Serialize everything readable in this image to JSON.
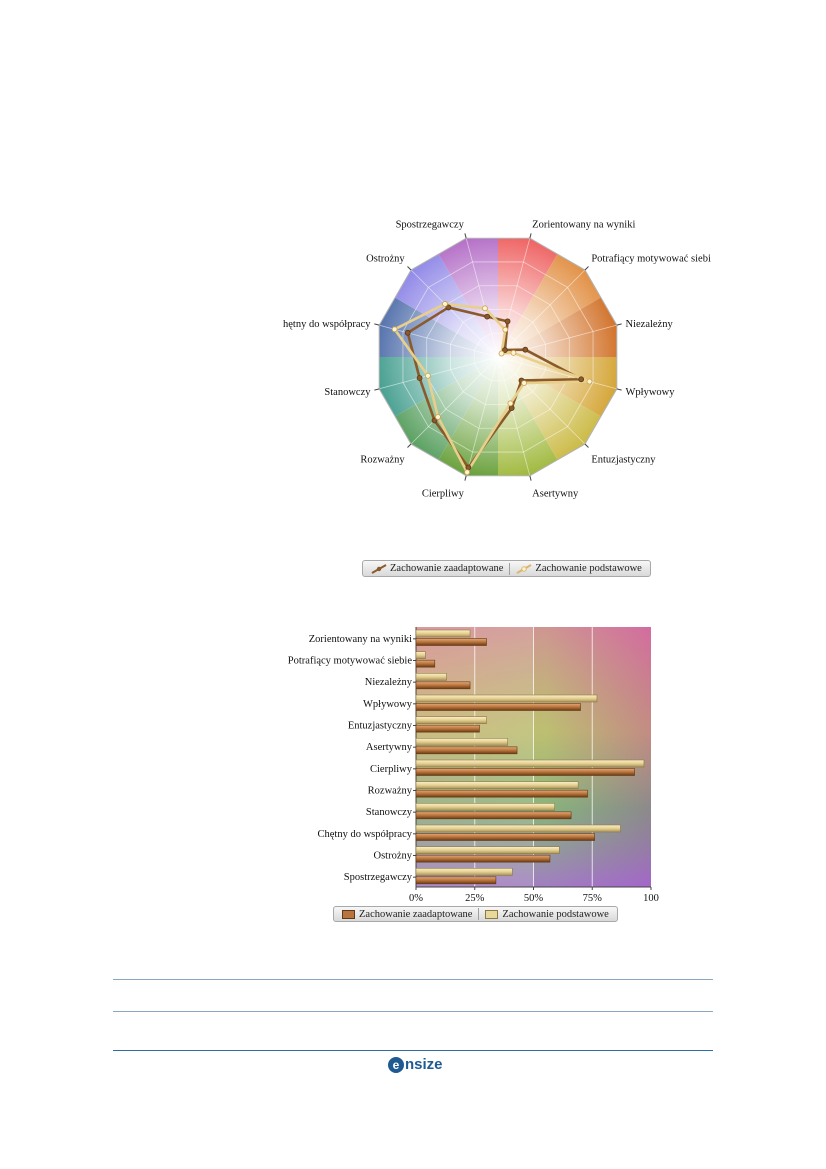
{
  "chart_data": [
    {
      "type": "radar",
      "title": "",
      "categories": [
        "Zorientowany na wyniki",
        "Potrafiący motywować siebie",
        "Niezależny",
        "Wpływowy",
        "Entuzjastyczny",
        "Asertywny",
        "Cierpliwy",
        "Rozważny",
        "Stanowczy",
        "Chętny do współpracy",
        "Ostrożny",
        "Spostrzegawczy"
      ],
      "label_texts": [
        "Zorientowany na wyniki",
        "Potrafiący motywować siebi",
        "Niezależny",
        "Wpływowy",
        "Entuzjastyczny",
        "Asertywny",
        "Cierpliwy",
        "Rozważny",
        "Stanowczy",
        "hętny do współpracy",
        "Ostrożny",
        "Spostrzegawczy"
      ],
      "series": [
        {
          "name": "Zachowanie zaadaptowane",
          "values": [
            30,
            8,
            23,
            70,
            27,
            43,
            93,
            73,
            66,
            76,
            57,
            34
          ],
          "color": "#8a5a2b"
        },
        {
          "name": "Zachowanie podstawowe",
          "values": [
            23,
            4,
            13,
            77,
            30,
            39,
            97,
            69,
            59,
            87,
            61,
            41
          ],
          "color": "#e8cf8c"
        }
      ],
      "rlim": [
        0,
        100
      ],
      "grid": true,
      "legend": "bottom"
    },
    {
      "type": "bar",
      "orientation": "horizontal",
      "categories": [
        "Zorientowany na wyniki",
        "Potrafiący motywować siebie",
        "Niezależny",
        "Wpływowy",
        "Entuzjastyczny",
        "Asertywny",
        "Cierpliwy",
        "Rozważny",
        "Stanowczy",
        "Chętny do współpracy",
        "Ostrożny",
        "Spostrzegawczy"
      ],
      "series": [
        {
          "name": "Zachowanie zaadaptowane",
          "values": [
            30,
            8,
            23,
            70,
            27,
            43,
            93,
            73,
            66,
            76,
            57,
            34
          ],
          "color": "#b8743c"
        },
        {
          "name": "Zachowanie podstawowe",
          "values": [
            23,
            4,
            13,
            77,
            30,
            39,
            97,
            69,
            59,
            87,
            61,
            41
          ],
          "color": "#e9d89c"
        }
      ],
      "xlim": [
        0,
        100
      ],
      "x_ticks": [
        "0%",
        "25%",
        "50%",
        "75%",
        "100"
      ],
      "grid": true,
      "legend": "bottom"
    }
  ],
  "legend_radar": [
    "Zachowanie zaadaptowane",
    "Zachowanie podstawowe"
  ],
  "legend_bar": [
    "Zachowanie zaadaptowane",
    "Zachowanie podstawowe"
  ],
  "footer": {
    "logo_text": "nsize",
    "logo_mark": "e"
  }
}
